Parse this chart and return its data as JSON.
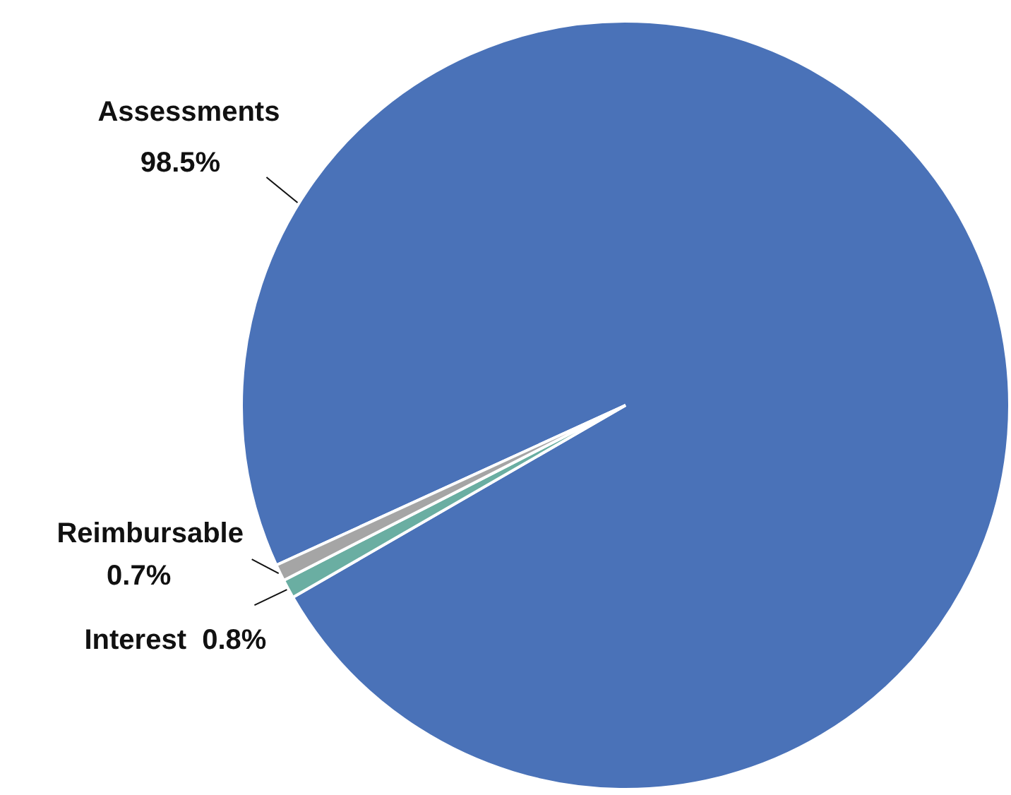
{
  "chart_data": {
    "type": "pie",
    "categories": [
      "Assessments",
      "Interest",
      "Reimbursable"
    ],
    "values": [
      98.5,
      0.8,
      0.7
    ],
    "value_labels": [
      "98.5%",
      "0.8%",
      "0.7%"
    ],
    "colors": [
      "#4a72b8",
      "#6aaea2",
      "#a5a5a5"
    ]
  }
}
